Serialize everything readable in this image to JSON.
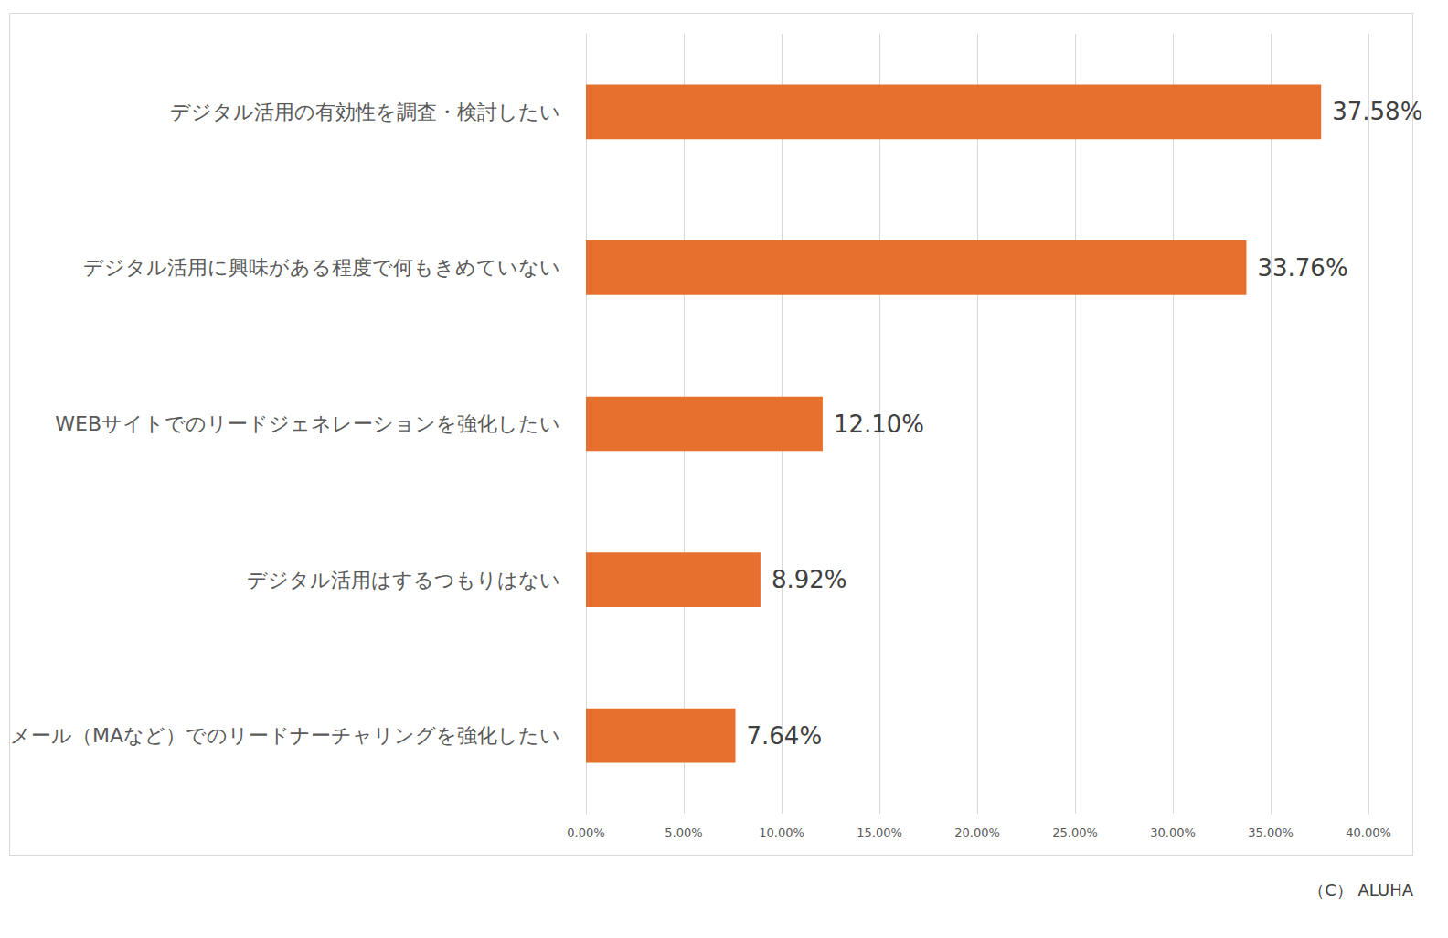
{
  "chart_data": {
    "type": "bar",
    "orientation": "horizontal",
    "categories": [
      "デジタル活用の有効性を調査・検討したい",
      "デジタル活用に興味がある程度で何もきめていない",
      "WEBサイトでのリードジェネレーションを強化したい",
      "デジタル活用はするつもりはない",
      "メール（MAなど）でのリードナーチャリングを強化したい"
    ],
    "values": [
      37.58,
      33.76,
      12.1,
      8.92,
      7.64
    ],
    "value_labels": [
      "37.58%",
      "33.76%",
      "12.10%",
      "8.92%",
      "7.64%"
    ],
    "color": "#e8702f",
    "xlim": [
      0,
      40
    ],
    "xticks": [
      {
        "value": 0,
        "label": "0.00%"
      },
      {
        "value": 5,
        "label": "5.00%"
      },
      {
        "value": 10,
        "label": "10.00%"
      },
      {
        "value": 15,
        "label": "15.00%"
      },
      {
        "value": 20,
        "label": "20.00%"
      },
      {
        "value": 25,
        "label": "25.00%"
      },
      {
        "value": 30,
        "label": "30.00%"
      },
      {
        "value": 35,
        "label": "35.00%"
      },
      {
        "value": 40,
        "label": "40.00%"
      }
    ],
    "grid": true,
    "data_labels": true,
    "annotation": "（C） ALUHA"
  }
}
